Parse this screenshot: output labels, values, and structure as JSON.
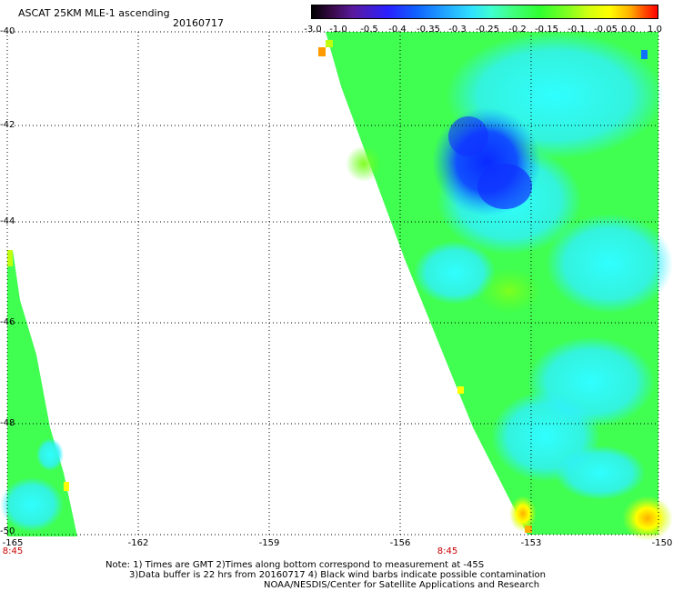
{
  "header": {
    "title": "ASCAT 25KM MLE-1 ascending",
    "date": "20160717"
  },
  "colorbar": {
    "labels": [
      "-3.0",
      "-1.0",
      "-0.5",
      "-0.4",
      "-0.35",
      "-0.3",
      "-0.25",
      "-0.2",
      "-0.15",
      "-0.1",
      "-0.05",
      "0.0",
      "1.0"
    ]
  },
  "axes": {
    "lat_labels": [
      "-40",
      "-42",
      "-44",
      "-46",
      "-48",
      "-50"
    ],
    "lon_labels": [
      "-165",
      "-162",
      "-159",
      "-156",
      "-153",
      "-150"
    ]
  },
  "time_labels": [
    "8:45",
    "8:45"
  ],
  "notes": {
    "line1": "Note: 1) Times are GMT 2)Times along bottom correspond to measurement at -45S",
    "line2": "3)Data buffer is 22 hrs from 20160717 4) Black wind barbs indicate possible contamination",
    "line3": "NOAA/NESDIS/Center for Satellite Applications and Research"
  },
  "colors": {
    "grid": "#000000",
    "time_label": "#cc0000"
  }
}
